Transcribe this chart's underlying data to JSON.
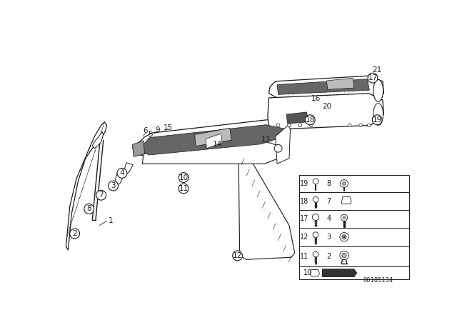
{
  "bg_color": "#ffffff",
  "line_color": "#1a1a1a",
  "catalog_number": "00185134",
  "gray_dark": "#666666",
  "gray_mid": "#999999",
  "gray_light": "#bbbbbb",
  "gray_hatch": "#444444"
}
